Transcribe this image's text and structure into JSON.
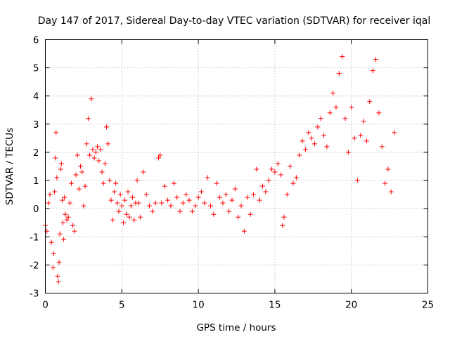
{
  "chart_data": {
    "type": "scatter",
    "title": "Day 147 of 2017, Sidereal Day-to-day VTEC variation (SDTVAR) for receiver iqal",
    "xlabel": "GPS time / hours",
    "ylabel": "SDTVAR / TECUs",
    "xlim": [
      0,
      25
    ],
    "ylim": [
      -3,
      6
    ],
    "xticks": [
      0,
      5,
      10,
      15,
      20,
      25
    ],
    "xtick_labels": [
      "0",
      "5",
      "10",
      "15",
      "20",
      "25"
    ],
    "yticks": [
      -3,
      -2,
      -1,
      0,
      1,
      2,
      3,
      4,
      5,
      6
    ],
    "ytick_labels": [
      "-3",
      "-2",
      "-1",
      "0",
      "1",
      "2",
      "3",
      "4",
      "5",
      "6"
    ],
    "grid": true,
    "marker": "+",
    "marker_color": "#ff0000",
    "series": [
      {
        "name": "SDTVAR",
        "x": [
          0.0,
          0.1,
          0.2,
          0.3,
          0.4,
          0.5,
          0.55,
          0.6,
          0.65,
          0.7,
          0.75,
          0.8,
          0.85,
          0.9,
          0.95,
          1.0,
          1.05,
          1.1,
          1.15,
          1.2,
          1.25,
          1.3,
          1.4,
          1.5,
          1.6,
          1.7,
          1.8,
          1.9,
          2.0,
          2.1,
          2.2,
          2.3,
          2.4,
          2.5,
          2.6,
          2.7,
          2.8,
          2.9,
          3.0,
          3.1,
          3.2,
          3.3,
          3.4,
          3.5,
          3.6,
          3.7,
          3.8,
          3.9,
          4.0,
          4.1,
          4.2,
          4.3,
          4.4,
          4.5,
          4.6,
          4.7,
          4.8,
          4.9,
          5.0,
          5.1,
          5.2,
          5.3,
          5.4,
          5.5,
          5.6,
          5.7,
          5.8,
          5.9,
          6.0,
          6.1,
          6.2,
          6.4,
          6.6,
          6.8,
          7.0,
          7.2,
          7.4,
          7.5,
          7.6,
          7.8,
          8.0,
          8.2,
          8.4,
          8.6,
          8.8,
          9.0,
          9.2,
          9.4,
          9.6,
          9.8,
          10.0,
          10.2,
          10.4,
          10.6,
          10.8,
          11.0,
          11.2,
          11.4,
          11.6,
          11.8,
          12.0,
          12.2,
          12.4,
          12.6,
          12.8,
          13.0,
          13.2,
          13.4,
          13.6,
          13.8,
          14.0,
          14.2,
          14.4,
          14.6,
          14.8,
          15.0,
          15.2,
          15.4,
          15.5,
          15.6,
          15.8,
          16.0,
          16.2,
          16.4,
          16.6,
          16.8,
          17.0,
          17.2,
          17.4,
          17.6,
          17.8,
          18.0,
          18.2,
          18.4,
          18.6,
          18.8,
          19.0,
          19.2,
          19.4,
          19.6,
          19.8,
          20.0,
          20.2,
          20.4,
          20.6,
          20.8,
          21.0,
          21.2,
          21.4,
          21.6,
          21.8,
          22.0,
          22.2,
          22.4,
          22.6,
          22.8
        ],
        "y": [
          -0.6,
          -0.8,
          0.2,
          0.5,
          -1.2,
          -2.1,
          -1.6,
          0.6,
          1.8,
          2.7,
          1.1,
          -2.4,
          -2.6,
          -1.9,
          -0.9,
          1.4,
          1.6,
          0.3,
          -0.5,
          -1.1,
          0.4,
          -0.2,
          -0.4,
          -0.3,
          0.2,
          0.9,
          -0.6,
          -0.8,
          1.2,
          1.9,
          0.7,
          1.5,
          1.3,
          0.1,
          0.8,
          2.3,
          3.2,
          1.9,
          3.9,
          2.1,
          1.8,
          2.0,
          2.2,
          1.7,
          2.1,
          1.3,
          0.9,
          1.6,
          2.9,
          2.3,
          1.0,
          0.3,
          -0.4,
          0.6,
          0.9,
          0.2,
          -0.1,
          0.5,
          0.1,
          -0.5,
          0.3,
          -0.2,
          0.6,
          -0.3,
          0.1,
          0.4,
          -0.4,
          0.2,
          1.0,
          0.2,
          -0.3,
          1.3,
          0.5,
          0.1,
          -0.1,
          0.2,
          1.8,
          1.9,
          0.2,
          0.8,
          0.3,
          0.1,
          0.9,
          0.4,
          -0.1,
          0.2,
          0.5,
          0.3,
          -0.1,
          0.1,
          0.4,
          0.6,
          0.2,
          1.1,
          0.1,
          -0.2,
          0.9,
          0.4,
          0.2,
          0.5,
          -0.1,
          0.3,
          0.7,
          -0.3,
          0.1,
          -0.8,
          0.4,
          -0.2,
          0.5,
          1.4,
          0.3,
          0.8,
          0.6,
          1.0,
          1.4,
          1.3,
          1.6,
          1.2,
          -0.6,
          -0.3,
          0.5,
          1.5,
          0.9,
          1.1,
          1.9,
          2.4,
          2.1,
          2.7,
          2.5,
          2.3,
          2.9,
          3.2,
          2.6,
          2.2,
          3.4,
          4.1,
          3.6,
          4.8,
          5.4,
          3.2,
          2.0,
          3.6,
          2.5,
          1.0,
          2.6,
          3.1,
          2.4,
          3.8,
          4.9,
          5.3,
          3.4,
          2.2,
          0.9,
          1.4,
          0.6,
          2.7
        ]
      }
    ]
  }
}
